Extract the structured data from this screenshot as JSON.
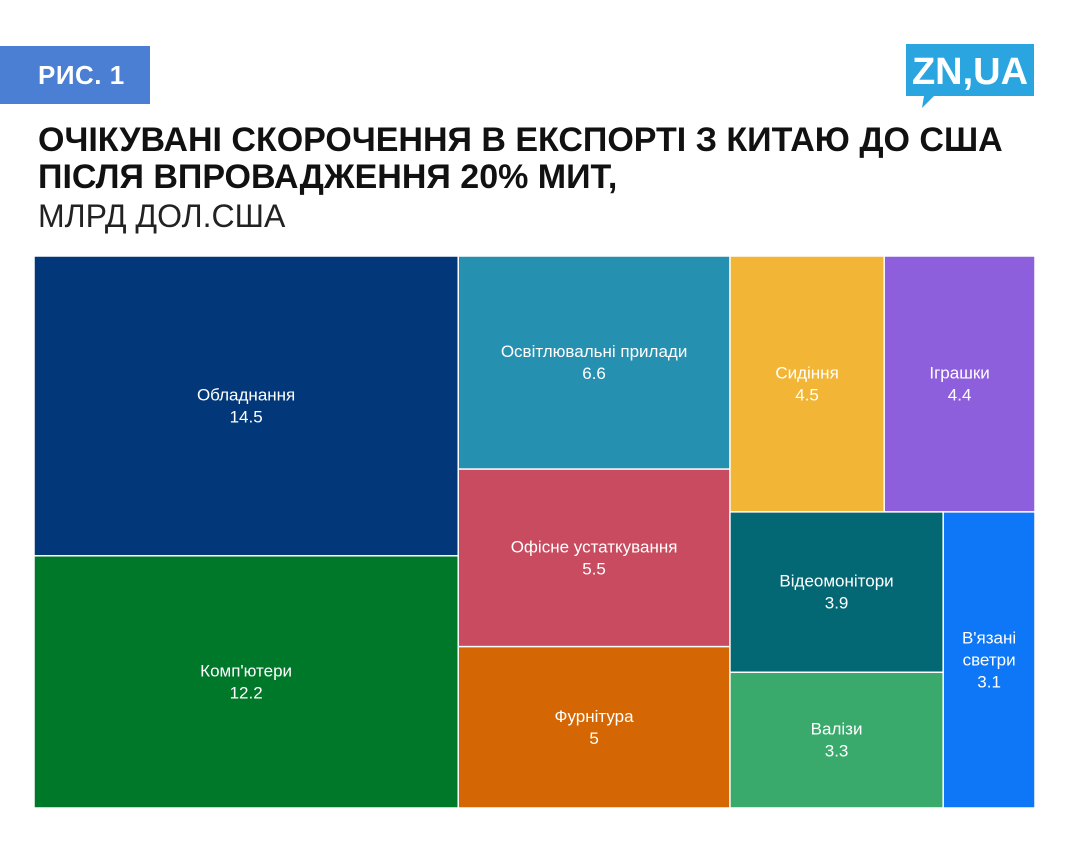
{
  "figure_label": "РИС. 1",
  "logo_text": "ZN,UA",
  "title": "ОЧІКУВАНІ СКОРОЧЕННЯ В ЕКСПОРТІ З КИТАЮ ДО США ПІСЛЯ ВПРОВАДЖЕННЯ 20% МИТ,",
  "subtitle": "МЛРД ДОЛ.США",
  "colors": {
    "badge": "#4a7fd4",
    "logo": "#2aa5e0"
  },
  "chart_data": {
    "type": "treemap",
    "title": "ОЧІКУВАНІ СКОРОЧЕННЯ В ЕКСПОРТІ З КИТАЮ ДО США ПІСЛЯ ВПРОВАДЖЕННЯ 20% МИТ,",
    "subtitle": "МЛРД ДОЛ.США",
    "unit": "млрд дол.США",
    "items": [
      {
        "label": "Обладнання",
        "value": 14.5,
        "value_label": "14.5",
        "color": "#02387a"
      },
      {
        "label": "Комп'ютери",
        "value": 12.2,
        "value_label": "12.2",
        "color": "#00782a"
      },
      {
        "label": "Освітлювальні прилади",
        "value": 6.6,
        "value_label": "6.6",
        "color": "#2690b0"
      },
      {
        "label": "Офісне устаткування",
        "value": 5.5,
        "value_label": "5.5",
        "color": "#c84b5f"
      },
      {
        "label": "Фурнітура",
        "value": 5,
        "value_label": "5",
        "color": "#d46703"
      },
      {
        "label": "Сидіння",
        "value": 4.5,
        "value_label": "4.5",
        "color": "#f2b535"
      },
      {
        "label": "Іграшки",
        "value": 4.4,
        "value_label": "4.4",
        "color": "#8e5fdc"
      },
      {
        "label": "Відеомонітори",
        "value": 3.9,
        "value_label": "3.9",
        "color": "#036874"
      },
      {
        "label": "Валізи",
        "value": 3.3,
        "value_label": "3.3",
        "color": "#3aaa6c"
      },
      {
        "label": "В'язані светри",
        "value": 3.1,
        "value_label": "3.1",
        "color": "#0d77f8"
      }
    ]
  }
}
